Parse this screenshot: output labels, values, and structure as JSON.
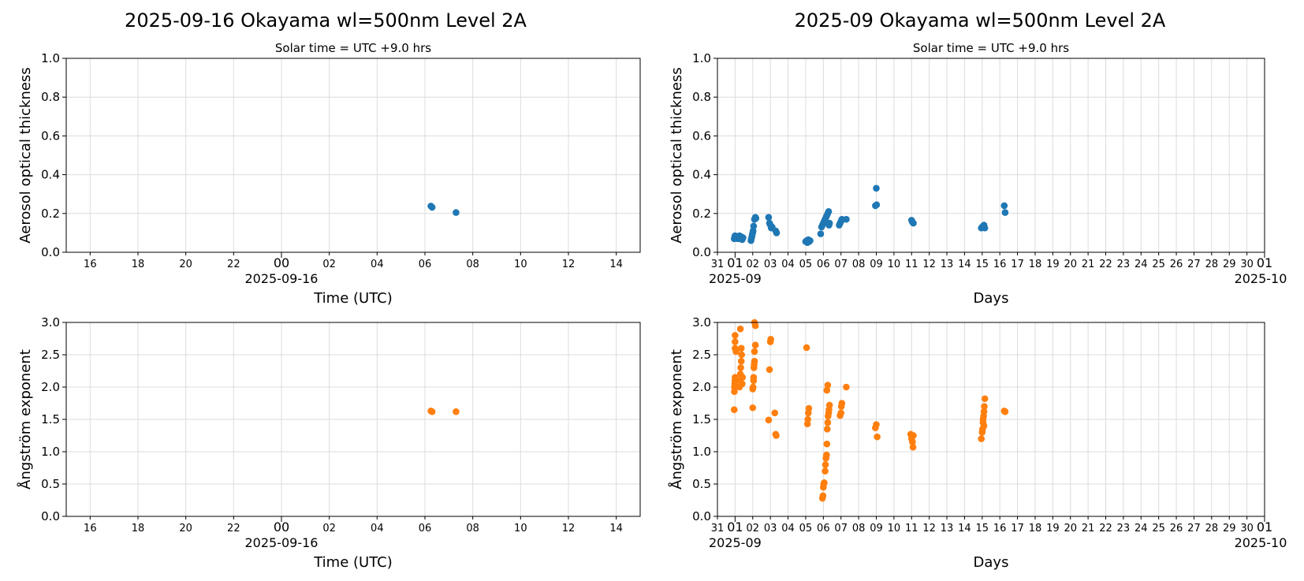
{
  "left": {
    "title": "2025-09-16  Okayama  wl=500nm  Level 2A",
    "subtitle": "Solar time = UTC +9.0 hrs"
  },
  "right": {
    "title": "2025-09  Okayama  wl=500nm  Level 2A",
    "subtitle": "Solar time = UTC +9.0 hrs"
  },
  "colors": {
    "aot": "#1f77b4",
    "angstrom": "#ff7f0e"
  },
  "chart_data": [
    {
      "type": "scatter",
      "ylabel": "Aerosol optical thickness",
      "xlabel": "Time (UTC)",
      "ylim": [
        0,
        1.0
      ],
      "yticks": [
        "0.0",
        "0.2",
        "0.4",
        "0.6",
        "0.8",
        "1.0"
      ],
      "xlim_hours": [
        -9.0,
        15.0
      ],
      "xticks": [
        "16",
        "18",
        "20",
        "22",
        "00",
        "02",
        "04",
        "06",
        "08",
        "10",
        "12",
        "14"
      ],
      "x_date_label": "2025-09-16",
      "grid": true,
      "color": "aot",
      "points": [
        [
          6.25,
          0.238
        ],
        [
          6.3,
          0.232
        ],
        [
          7.3,
          0.205
        ]
      ]
    },
    {
      "type": "scatter",
      "ylabel": "Aerosol optical thickness",
      "xlabel": "Days",
      "ylim": [
        0,
        1.0
      ],
      "yticks": [
        "0.0",
        "0.2",
        "0.4",
        "0.6",
        "0.8",
        "1.0"
      ],
      "xlim_days": [
        -1.0,
        30.0
      ],
      "xticks": [
        "31",
        "01",
        "02",
        "03",
        "04",
        "05",
        "06",
        "07",
        "08",
        "09",
        "10",
        "11",
        "12",
        "13",
        "14",
        "15",
        "16",
        "17",
        "18",
        "19",
        "20",
        "21",
        "22",
        "23",
        "24",
        "25",
        "26",
        "27",
        "28",
        "29",
        "30",
        "01"
      ],
      "x_date_labels": [
        "2025-09",
        "2025-10"
      ],
      "grid": true,
      "color": "aot",
      "points": [
        [
          -0.05,
          0.07
        ],
        [
          -0.02,
          0.08
        ],
        [
          0.0,
          0.085
        ],
        [
          0.05,
          0.075
        ],
        [
          0.1,
          0.08
        ],
        [
          0.15,
          0.07
        ],
        [
          0.25,
          0.085
        ],
        [
          0.3,
          0.07
        ],
        [
          0.35,
          0.08
        ],
        [
          0.4,
          0.065
        ],
        [
          0.45,
          0.075
        ],
        [
          0.9,
          0.06
        ],
        [
          0.92,
          0.07
        ],
        [
          0.95,
          0.08
        ],
        [
          0.97,
          0.09
        ],
        [
          1.0,
          0.1
        ],
        [
          1.02,
          0.11
        ],
        [
          1.05,
          0.135
        ],
        [
          1.1,
          0.17
        ],
        [
          1.15,
          0.18
        ],
        [
          1.18,
          0.175
        ],
        [
          1.9,
          0.18
        ],
        [
          1.95,
          0.15
        ],
        [
          2.0,
          0.14
        ],
        [
          2.05,
          0.125
        ],
        [
          2.1,
          0.13
        ],
        [
          2.3,
          0.11
        ],
        [
          2.35,
          0.1
        ],
        [
          4.0,
          0.055
        ],
        [
          4.05,
          0.06
        ],
        [
          4.1,
          0.05
        ],
        [
          4.15,
          0.065
        ],
        [
          4.2,
          0.055
        ],
        [
          4.25,
          0.06
        ],
        [
          4.85,
          0.095
        ],
        [
          4.9,
          0.13
        ],
        [
          4.95,
          0.14
        ],
        [
          5.0,
          0.15
        ],
        [
          5.05,
          0.16
        ],
        [
          5.1,
          0.17
        ],
        [
          5.15,
          0.18
        ],
        [
          5.2,
          0.19
        ],
        [
          5.25,
          0.2
        ],
        [
          5.3,
          0.21
        ],
        [
          5.32,
          0.14
        ],
        [
          5.35,
          0.15
        ],
        [
          5.9,
          0.14
        ],
        [
          5.95,
          0.15
        ],
        [
          6.0,
          0.16
        ],
        [
          6.05,
          0.17
        ],
        [
          6.3,
          0.17
        ],
        [
          7.95,
          0.24
        ],
        [
          8.0,
          0.33
        ],
        [
          8.02,
          0.245
        ],
        [
          10.0,
          0.165
        ],
        [
          10.05,
          0.155
        ],
        [
          10.1,
          0.15
        ],
        [
          13.95,
          0.125
        ],
        [
          14.0,
          0.13
        ],
        [
          14.05,
          0.135
        ],
        [
          14.1,
          0.14
        ],
        [
          14.15,
          0.125
        ],
        [
          15.25,
          0.24
        ],
        [
          15.3,
          0.205
        ]
      ]
    },
    {
      "type": "scatter",
      "ylabel": "Ångström exponent",
      "xlabel": "Time (UTC)",
      "ylim": [
        0,
        3.0
      ],
      "yticks": [
        "0.0",
        "0.5",
        "1.0",
        "1.5",
        "2.0",
        "2.5",
        "3.0"
      ],
      "xlim_hours": [
        -9.0,
        15.0
      ],
      "xticks": [
        "16",
        "18",
        "20",
        "22",
        "00",
        "02",
        "04",
        "06",
        "08",
        "10",
        "12",
        "14"
      ],
      "x_date_label": "2025-09-16",
      "grid": true,
      "color": "angstrom",
      "points": [
        [
          6.25,
          1.63
        ],
        [
          6.3,
          1.62
        ],
        [
          7.3,
          1.62
        ]
      ]
    },
    {
      "type": "scatter",
      "ylabel": "Ångström exponent",
      "xlabel": "Days",
      "ylim": [
        0,
        3.0
      ],
      "yticks": [
        "0.0",
        "0.5",
        "1.0",
        "1.5",
        "2.0",
        "2.5",
        "3.0"
      ],
      "xlim_days": [
        -1.0,
        30.0
      ],
      "xticks": [
        "31",
        "01",
        "02",
        "03",
        "04",
        "05",
        "06",
        "07",
        "08",
        "09",
        "10",
        "11",
        "12",
        "13",
        "14",
        "15",
        "16",
        "17",
        "18",
        "19",
        "20",
        "21",
        "22",
        "23",
        "24",
        "25",
        "26",
        "27",
        "28",
        "29",
        "30",
        "01"
      ],
      "x_date_labels": [
        "2025-09",
        "2025-10"
      ],
      "grid": true,
      "color": "angstrom",
      "points": [
        [
          -0.05,
          1.65
        ],
        [
          -0.04,
          1.93
        ],
        [
          -0.03,
          2.0
        ],
        [
          -0.02,
          2.05
        ],
        [
          -0.01,
          2.1
        ],
        [
          0.0,
          2.15
        ],
        [
          0.0,
          2.6
        ],
        [
          0.0,
          2.7
        ],
        [
          0.0,
          2.8
        ],
        [
          0.05,
          2.55
        ],
        [
          0.25,
          2.0
        ],
        [
          0.28,
          2.1
        ],
        [
          0.3,
          2.2
        ],
        [
          0.32,
          2.3
        ],
        [
          0.35,
          2.4
        ],
        [
          0.37,
          2.5
        ],
        [
          0.4,
          2.05
        ],
        [
          0.42,
          2.15
        ],
        [
          0.3,
          2.9
        ],
        [
          0.35,
          2.6
        ],
        [
          1.0,
          1.68
        ],
        [
          1.0,
          1.97
        ],
        [
          1.02,
          2.0
        ],
        [
          1.05,
          2.1
        ],
        [
          1.05,
          2.15
        ],
        [
          1.07,
          2.3
        ],
        [
          1.08,
          2.35
        ],
        [
          1.1,
          2.4
        ],
        [
          1.1,
          2.55
        ],
        [
          1.15,
          2.65
        ],
        [
          1.15,
          2.95
        ],
        [
          1.1,
          3.0
        ],
        [
          1.9,
          1.49
        ],
        [
          1.95,
          2.27
        ],
        [
          2.0,
          2.7
        ],
        [
          2.02,
          2.74
        ],
        [
          2.25,
          1.6
        ],
        [
          2.3,
          1.27
        ],
        [
          2.33,
          1.25
        ],
        [
          4.05,
          2.61
        ],
        [
          4.1,
          1.43
        ],
        [
          4.12,
          1.5
        ],
        [
          4.15,
          1.6
        ],
        [
          4.18,
          1.67
        ],
        [
          4.95,
          0.28
        ],
        [
          4.98,
          0.32
        ],
        [
          5.0,
          0.45
        ],
        [
          5.02,
          0.5
        ],
        [
          5.05,
          0.52
        ],
        [
          5.1,
          0.7
        ],
        [
          5.12,
          0.8
        ],
        [
          5.15,
          0.9
        ],
        [
          5.18,
          0.95
        ],
        [
          5.2,
          1.12
        ],
        [
          5.22,
          1.35
        ],
        [
          5.25,
          1.45
        ],
        [
          5.27,
          1.55
        ],
        [
          5.3,
          1.6
        ],
        [
          5.32,
          1.65
        ],
        [
          5.35,
          1.72
        ],
        [
          5.2,
          1.95
        ],
        [
          5.25,
          2.03
        ],
        [
          5.95,
          1.56
        ],
        [
          6.0,
          1.6
        ],
        [
          6.02,
          1.7
        ],
        [
          6.05,
          1.75
        ],
        [
          6.3,
          2.0
        ],
        [
          7.95,
          1.37
        ],
        [
          8.0,
          1.42
        ],
        [
          8.05,
          1.23
        ],
        [
          9.95,
          1.27
        ],
        [
          10.0,
          1.2
        ],
        [
          10.05,
          1.15
        ],
        [
          10.08,
          1.07
        ],
        [
          10.1,
          1.25
        ],
        [
          13.95,
          1.2
        ],
        [
          14.0,
          1.3
        ],
        [
          14.02,
          1.35
        ],
        [
          14.05,
          1.45
        ],
        [
          14.08,
          1.55
        ],
        [
          14.1,
          1.62
        ],
        [
          14.12,
          1.7
        ],
        [
          14.15,
          1.82
        ],
        [
          14.05,
          1.5
        ],
        [
          14.1,
          1.4
        ],
        [
          15.25,
          1.63
        ],
        [
          15.3,
          1.62
        ]
      ]
    }
  ]
}
